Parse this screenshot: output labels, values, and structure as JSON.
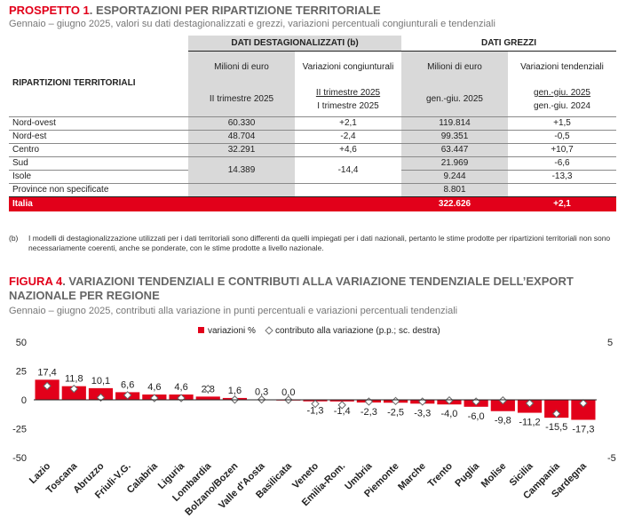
{
  "table": {
    "title_prefix": "PROSPETTO 1",
    "title_rest": ". ESPORTAZIONI PER RIPARTIZIONE TERRITORIALE",
    "subtitle": "Gennaio – giugno 2025, valori su dati destagionalizzati e grezzi, variazioni percentuali congiunturali e tendenziali",
    "group_dest": "DATI DESTAGIONALIZZATI (b)",
    "group_grezzi": "DATI GREZZI",
    "col_ripartizioni": "RIPARTIZIONI TERRITORIALI",
    "col_milioni_1": "Milioni di euro",
    "col_var_cong": "Variazioni congiunturali",
    "col_milioni_2": "Milioni di euro",
    "col_var_tend": "Variazioni tendenziali",
    "period_1": "II trimestre 2025",
    "period_2a": "II trimestre 2025",
    "period_2b": "I trimestre 2025",
    "period_3": "gen.-giu. 2025",
    "period_4a": "gen.-giu. 2025",
    "period_4b": "gen.-giu. 2024",
    "rows": [
      {
        "label": "Nord-ovest",
        "m1": "60.330",
        "vc": "+2,1",
        "m2": "119.814",
        "vt": "+1,5"
      },
      {
        "label": "Nord-est",
        "m1": "48.704",
        "vc": "-2,4",
        "m2": "99.351",
        "vt": "-0,5"
      },
      {
        "label": "Centro",
        "m1": "32.291",
        "vc": "+4,6",
        "m2": "63.447",
        "vt": "+10,7"
      },
      {
        "label": "Sud",
        "m2": "21.969",
        "vt": "-6,6"
      },
      {
        "label": "Isole",
        "m2": "9.244",
        "vt": "-13,3"
      },
      {
        "label": "Province non specificate",
        "m2": "8.801",
        "vt": ""
      }
    ],
    "merged_m1": "14.389",
    "merged_vc": "-14,4",
    "italia": {
      "label": "Italia",
      "m2": "322.626",
      "vt": "+2,1"
    },
    "note_mark": "(b)",
    "note_text": "I modelli di destagionalizzazione utilizzati per i dati territoriali sono differenti da quelli impiegati per i dati nazionali, pertanto le stime prodotte per ripartizioni territoriali non sono necessariamente coerenti, anche se ponderate, con le stime prodotte a livello nazionale."
  },
  "figure": {
    "title_prefix": "FIGURA 4",
    "title_rest": ". VARIAZIONI TENDENZIALI E CONTRIBUTI ALLA VARIAZIONE TENDENZIALE DELL’EXPORT NAZIONALE PER REGIONE",
    "subtitle": "Gennaio – giugno 2025, contributi alla variazione in punti percentuali e variazioni percentuali tendenziali"
  },
  "chart_data": {
    "type": "bar",
    "categories": [
      "Lazio",
      "Toscana",
      "Abruzzo",
      "Friuli-V.G.",
      "Calabria",
      "Liguria",
      "Lombardia",
      "Bolzano/Bozen",
      "Valle d'Aosta",
      "Basilicata",
      "Veneto",
      "Emilia-Rom.",
      "Umbria",
      "Piemonte",
      "Marche",
      "Trento",
      "Puglia",
      "Molise",
      "Sicilia",
      "Campania",
      "Sardegna"
    ],
    "value_labels": [
      "17,4",
      "11,8",
      "10,1",
      "6,6",
      "4,6",
      "4,6",
      "2,8",
      "1,6",
      "0,3",
      "0,0",
      "-1,3",
      "-1,4",
      "-2,3",
      "-2,5",
      "-3,3",
      "-4,0",
      "-6,0",
      "-9,8",
      "-11,2",
      "-15,5",
      "-17,3"
    ],
    "series": [
      {
        "name": "variazioni %",
        "axis": "left",
        "color": "#e2001a",
        "values": [
          17.4,
          11.8,
          10.1,
          6.6,
          4.6,
          4.6,
          2.8,
          1.6,
          0.3,
          0.0,
          -1.3,
          -1.4,
          -2.3,
          -2.5,
          -3.3,
          -4.0,
          -6.0,
          -9.8,
          -11.2,
          -15.5,
          -17.3
        ]
      },
      {
        "name": "contributo alla variazione (p.p.; sc. destra)",
        "axis": "right",
        "marker": "diamond",
        "values": [
          1.2,
          0.95,
          0.2,
          0.4,
          0.15,
          0.15,
          0.95,
          0.02,
          0.03,
          0.0,
          -0.35,
          -0.45,
          -0.15,
          -0.1,
          -0.15,
          -0.05,
          -0.15,
          -0.05,
          -0.3,
          -1.2,
          -0.3
        ]
      }
    ],
    "y_left": {
      "lim": [
        -50,
        50
      ],
      "ticks": [
        50,
        25,
        0,
        -25,
        -50
      ]
    },
    "y_right": {
      "lim": [
        -5,
        5
      ],
      "ticks": [
        "5",
        "",
        "-5"
      ]
    },
    "legend_position": "top-center",
    "grid": false
  }
}
